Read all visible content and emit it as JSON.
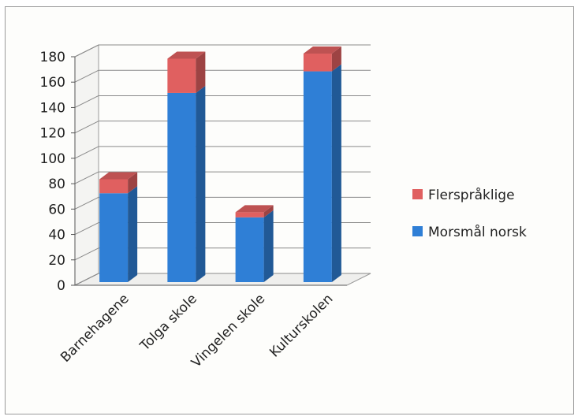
{
  "chart_data": {
    "type": "bar",
    "stacked": true,
    "three_d": true,
    "categories": [
      "Barnehagene",
      "Tolga skole",
      "Vingelen skole",
      "Kulturskolen"
    ],
    "series": [
      {
        "name": "Morsmål norsk",
        "values": [
          70,
          149,
          51,
          166
        ],
        "color": "#2f7fd6"
      },
      {
        "name": "Flerspråklige",
        "values": [
          11,
          27,
          4,
          14
        ],
        "color": "#e06060"
      }
    ],
    "ylim": [
      0,
      180
    ],
    "yticks": [
      0,
      20,
      40,
      60,
      80,
      100,
      120,
      140,
      160,
      180
    ],
    "grid": true,
    "legend": "right"
  }
}
